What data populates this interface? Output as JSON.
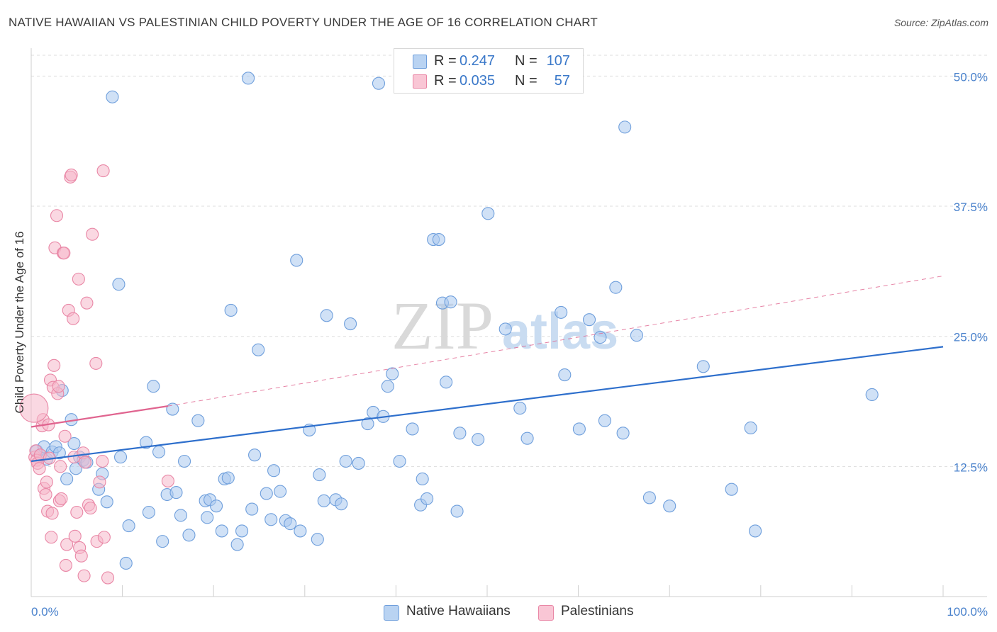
{
  "title": "NATIVE HAWAIIAN VS PALESTINIAN CHILD POVERTY UNDER THE AGE OF 16 CORRELATION CHART",
  "source": "Source: ZipAtlas.com",
  "watermark": {
    "zip": "ZIP",
    "atlas": "atlas"
  },
  "legend": {
    "r_label": "R =",
    "n_label": "N =",
    "rows": [
      {
        "name": "Native Hawaiians",
        "r": "0.247",
        "n": "107",
        "color": "#a9c8ee"
      },
      {
        "name": "Palestinians",
        "r": "0.035",
        "n": "57",
        "color": "#f5b8cb"
      }
    ]
  },
  "chart_data": {
    "type": "scatter",
    "title": "NATIVE HAWAIIAN VS PALESTINIAN CHILD POVERTY UNDER THE AGE OF 16 CORRELATION CHART",
    "xlabel": "",
    "ylabel": "Child Poverty Under the Age of 16",
    "xlim": [
      0,
      100
    ],
    "ylim": [
      0,
      52
    ],
    "x_tick_labels": [
      "0.0%",
      "100.0%"
    ],
    "y_ticks": [
      12.5,
      25.0,
      37.5,
      50.0
    ],
    "y_tick_labels": [
      "12.5%",
      "25.0%",
      "37.5%",
      "50.0%"
    ],
    "grid": true,
    "series": [
      {
        "name": "Native Hawaiians",
        "color": "#a9c8ee",
        "stroke": "#6f9fdc",
        "trend": {
          "x": [
            0,
            100
          ],
          "y": [
            13.0,
            24.0
          ],
          "color": "#2e6fcc"
        },
        "points": [
          [
            0.6,
            14.0
          ],
          [
            1.0,
            13.6
          ],
          [
            1.4,
            14.4
          ],
          [
            1.7,
            13.2
          ],
          [
            2.3,
            13.9
          ],
          [
            2.7,
            14.4
          ],
          [
            3.1,
            13.8
          ],
          [
            3.4,
            19.8
          ],
          [
            3.9,
            11.3
          ],
          [
            4.4,
            17.0
          ],
          [
            4.7,
            14.7
          ],
          [
            4.9,
            12.3
          ],
          [
            5.3,
            13.4
          ],
          [
            5.7,
            13.1
          ],
          [
            6.1,
            12.9
          ],
          [
            7.4,
            10.3
          ],
          [
            7.8,
            11.8
          ],
          [
            8.3,
            9.1
          ],
          [
            8.9,
            48.0
          ],
          [
            9.6,
            30.0
          ],
          [
            9.8,
            13.4
          ],
          [
            10.4,
            3.2
          ],
          [
            10.7,
            6.8
          ],
          [
            12.6,
            14.8
          ],
          [
            12.9,
            8.1
          ],
          [
            13.4,
            20.2
          ],
          [
            14.0,
            13.9
          ],
          [
            14.4,
            5.3
          ],
          [
            14.9,
            9.8
          ],
          [
            15.5,
            18.0
          ],
          [
            15.9,
            10.0
          ],
          [
            16.4,
            7.8
          ],
          [
            16.8,
            13.0
          ],
          [
            17.3,
            5.9
          ],
          [
            18.3,
            16.9
          ],
          [
            19.1,
            9.2
          ],
          [
            19.3,
            7.6
          ],
          [
            19.6,
            9.3
          ],
          [
            20.3,
            8.7
          ],
          [
            20.9,
            6.3
          ],
          [
            21.2,
            11.3
          ],
          [
            21.6,
            11.4
          ],
          [
            21.9,
            27.5
          ],
          [
            22.6,
            5.0
          ],
          [
            23.1,
            6.3
          ],
          [
            23.8,
            49.8
          ],
          [
            24.2,
            8.4
          ],
          [
            24.5,
            13.6
          ],
          [
            24.9,
            23.7
          ],
          [
            25.8,
            9.9
          ],
          [
            26.3,
            7.4
          ],
          [
            26.6,
            12.1
          ],
          [
            27.3,
            10.1
          ],
          [
            27.9,
            7.3
          ],
          [
            28.4,
            7.0
          ],
          [
            29.1,
            32.3
          ],
          [
            29.5,
            6.3
          ],
          [
            30.5,
            16.0
          ],
          [
            31.4,
            5.5
          ],
          [
            31.6,
            11.7
          ],
          [
            32.1,
            9.2
          ],
          [
            32.4,
            27.0
          ],
          [
            33.4,
            9.3
          ],
          [
            34.0,
            8.9
          ],
          [
            34.5,
            13.0
          ],
          [
            35.0,
            26.2
          ],
          [
            35.9,
            12.8
          ],
          [
            36.9,
            16.6
          ],
          [
            37.5,
            17.7
          ],
          [
            38.1,
            49.3
          ],
          [
            38.6,
            17.3
          ],
          [
            39.1,
            20.2
          ],
          [
            39.6,
            21.4
          ],
          [
            40.4,
            13.0
          ],
          [
            41.8,
            16.1
          ],
          [
            42.7,
            8.8
          ],
          [
            42.9,
            11.3
          ],
          [
            43.4,
            9.4
          ],
          [
            44.1,
            34.3
          ],
          [
            44.7,
            34.3
          ],
          [
            45.1,
            28.2
          ],
          [
            45.5,
            20.6
          ],
          [
            46.0,
            28.3
          ],
          [
            46.7,
            8.2
          ],
          [
            47.0,
            15.7
          ],
          [
            49.0,
            15.1
          ],
          [
            50.1,
            36.8
          ],
          [
            52.0,
            25.7
          ],
          [
            53.6,
            18.1
          ],
          [
            54.4,
            15.2
          ],
          [
            58.1,
            27.3
          ],
          [
            58.5,
            21.3
          ],
          [
            60.1,
            16.1
          ],
          [
            61.2,
            26.6
          ],
          [
            62.4,
            24.9
          ],
          [
            62.9,
            16.9
          ],
          [
            64.1,
            29.7
          ],
          [
            64.9,
            15.7
          ],
          [
            65.1,
            45.1
          ],
          [
            66.4,
            25.1
          ],
          [
            67.8,
            9.5
          ],
          [
            70.0,
            8.7
          ],
          [
            73.7,
            22.1
          ],
          [
            76.8,
            10.3
          ],
          [
            78.9,
            16.2
          ],
          [
            79.4,
            6.3
          ],
          [
            92.2,
            19.4
          ]
        ]
      },
      {
        "name": "Palestinians",
        "color": "#f5b8cb",
        "stroke": "#e987a6",
        "trend": {
          "x": [
            0,
            15
          ],
          "y": [
            16.3,
            18.3
          ],
          "color": "#e0648f",
          "ext_x": [
            15,
            100
          ],
          "ext_y": [
            18.3,
            30.8
          ]
        },
        "points": [
          [
            0.4,
            13.4
          ],
          [
            0.5,
            14.0
          ],
          [
            0.6,
            13.1
          ],
          [
            0.7,
            12.8
          ],
          [
            0.9,
            12.3
          ],
          [
            1.0,
            13.6
          ],
          [
            1.2,
            16.4
          ],
          [
            1.3,
            17.0
          ],
          [
            1.4,
            10.4
          ],
          [
            1.6,
            9.8
          ],
          [
            1.7,
            11.0
          ],
          [
            1.8,
            8.2
          ],
          [
            1.9,
            16.5
          ],
          [
            2.0,
            13.3
          ],
          [
            2.1,
            20.8
          ],
          [
            2.2,
            5.7
          ],
          [
            2.3,
            8.0
          ],
          [
            2.4,
            20.1
          ],
          [
            2.5,
            22.2
          ],
          [
            2.6,
            33.5
          ],
          [
            2.8,
            36.6
          ],
          [
            2.9,
            19.5
          ],
          [
            3.0,
            20.2
          ],
          [
            3.1,
            9.2
          ],
          [
            3.2,
            12.5
          ],
          [
            3.3,
            9.4
          ],
          [
            3.5,
            33.0
          ],
          [
            3.6,
            33.0
          ],
          [
            3.7,
            15.4
          ],
          [
            3.8,
            3.0
          ],
          [
            3.9,
            5.0
          ],
          [
            4.1,
            27.5
          ],
          [
            4.3,
            40.3
          ],
          [
            4.4,
            40.5
          ],
          [
            4.6,
            26.7
          ],
          [
            4.7,
            13.4
          ],
          [
            4.8,
            5.8
          ],
          [
            5.0,
            8.1
          ],
          [
            5.2,
            30.5
          ],
          [
            5.3,
            4.7
          ],
          [
            5.5,
            3.9
          ],
          [
            5.7,
            13.8
          ],
          [
            5.8,
            2.0
          ],
          [
            5.9,
            12.9
          ],
          [
            6.1,
            28.2
          ],
          [
            6.3,
            8.8
          ],
          [
            6.5,
            8.5
          ],
          [
            6.7,
            34.8
          ],
          [
            7.1,
            22.4
          ],
          [
            7.2,
            5.3
          ],
          [
            7.5,
            11.0
          ],
          [
            7.8,
            13.0
          ],
          [
            7.9,
            40.9
          ],
          [
            8.0,
            5.7
          ],
          [
            8.4,
            1.8
          ],
          [
            15.0,
            11.1
          ],
          [
            0.3,
            18.1
          ]
        ]
      }
    ]
  }
}
